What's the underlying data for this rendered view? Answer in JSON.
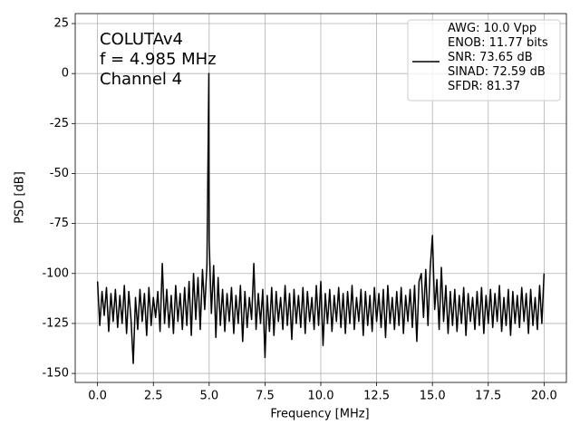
{
  "chart_data": {
    "type": "line",
    "xlabel": "Frequency [MHz]",
    "ylabel": "PSD [dB]",
    "annotations": [
      "COLUTAv4",
      "f = 4.985 MHz",
      "Channel 4"
    ],
    "xlim": [
      -1.0,
      21.0
    ],
    "ylim": [
      -154.5,
      30
    ],
    "xticks": [
      {
        "value": 0,
        "label": "0.0"
      },
      2.5,
      {
        "value": 5,
        "label": "5.0"
      },
      7.5,
      {
        "value": 10,
        "label": "10.0"
      },
      12.5,
      {
        "value": 15,
        "label": "15.0"
      },
      17.5,
      {
        "value": 20,
        "label": "20.0"
      }
    ],
    "yticks": [
      25,
      0,
      -25,
      -50,
      -75,
      -100,
      -125,
      -150
    ],
    "grid": true,
    "legend": "upper right",
    "x": [
      0.0,
      0.1,
      0.2,
      0.3,
      0.4,
      0.5,
      0.6,
      0.7,
      0.8,
      0.9,
      1.0,
      1.1,
      1.2,
      1.3,
      1.4,
      1.5,
      1.6,
      1.7,
      1.8,
      1.9,
      2.0,
      2.1,
      2.2,
      2.3,
      2.4,
      2.5,
      2.6,
      2.7,
      2.8,
      2.9,
      3.0,
      3.1,
      3.2,
      3.3,
      3.4,
      3.5,
      3.6,
      3.7,
      3.8,
      3.9,
      4.0,
      4.1,
      4.2,
      4.3,
      4.4,
      4.5,
      4.6,
      4.7,
      4.8,
      4.9,
      4.985,
      5.0,
      5.1,
      5.2,
      5.3,
      5.4,
      5.5,
      5.6,
      5.7,
      5.8,
      5.9,
      6.0,
      6.1,
      6.2,
      6.3,
      6.4,
      6.5,
      6.6,
      6.7,
      6.8,
      6.9,
      7.0,
      7.1,
      7.2,
      7.3,
      7.4,
      7.5,
      7.6,
      7.7,
      7.8,
      7.9,
      8.0,
      8.1,
      8.2,
      8.3,
      8.4,
      8.5,
      8.6,
      8.7,
      8.8,
      8.9,
      9.0,
      9.1,
      9.2,
      9.3,
      9.4,
      9.5,
      9.6,
      9.7,
      9.8,
      9.9,
      10.0,
      10.1,
      10.2,
      10.3,
      10.4,
      10.5,
      10.6,
      10.7,
      10.8,
      10.9,
      11.0,
      11.1,
      11.2,
      11.3,
      11.4,
      11.5,
      11.6,
      11.7,
      11.8,
      11.9,
      12.0,
      12.1,
      12.2,
      12.3,
      12.4,
      12.5,
      12.6,
      12.7,
      12.8,
      12.9,
      13.0,
      13.1,
      13.2,
      13.3,
      13.4,
      13.5,
      13.6,
      13.7,
      13.8,
      13.9,
      14.0,
      14.1,
      14.2,
      14.3,
      14.4,
      14.5,
      14.6,
      14.7,
      14.8,
      14.9,
      15.0,
      15.1,
      15.2,
      15.3,
      15.4,
      15.5,
      15.6,
      15.7,
      15.8,
      15.9,
      16.0,
      16.1,
      16.2,
      16.3,
      16.4,
      16.5,
      16.6,
      16.7,
      16.8,
      16.9,
      17.0,
      17.1,
      17.2,
      17.3,
      17.4,
      17.5,
      17.6,
      17.7,
      17.8,
      17.9,
      18.0,
      18.1,
      18.2,
      18.3,
      18.4,
      18.5,
      18.6,
      18.7,
      18.8,
      18.9,
      19.0,
      19.1,
      19.2,
      19.3,
      19.4,
      19.5,
      19.6,
      19.7,
      19.8,
      19.9,
      20.0
    ],
    "series": [
      {
        "name": "AWG: 10.0 Vpp\nENOB: 11.77 bits\nSNR: 73.65 dB\nSINAD: 72.59 dB\nSFDR: 81.37",
        "color": "#000000",
        "values": [
          -104,
          -126,
          -109,
          -121,
          -107,
          -129,
          -110,
          -124,
          -108,
          -127,
          -111,
          -125,
          -106,
          -130,
          -109,
          -123,
          -145,
          -112,
          -128,
          -108,
          -124,
          -110,
          -131,
          -107,
          -126,
          -112,
          -122,
          -109,
          -129,
          -95,
          -125,
          -108,
          -127,
          -111,
          -130,
          -106,
          -124,
          -110,
          -128,
          -107,
          -126,
          -104,
          -131,
          -100,
          -123,
          -102,
          -128,
          -98,
          -118,
          -96,
          0,
          -84,
          -120,
          -96,
          -132,
          -102,
          -126,
          -108,
          -129,
          -110,
          -124,
          -107,
          -130,
          -111,
          -125,
          -106,
          -134,
          -109,
          -127,
          -112,
          -123,
          -95,
          -128,
          -110,
          -125,
          -108,
          -142,
          -111,
          -129,
          -107,
          -131,
          -109,
          -124,
          -112,
          -128,
          -106,
          -126,
          -110,
          -133,
          -108,
          -125,
          -111,
          -127,
          -107,
          -130,
          -109,
          -124,
          -112,
          -128,
          -106,
          -126,
          -104,
          -136,
          -110,
          -125,
          -108,
          -129,
          -111,
          -124,
          -107,
          -127,
          -110,
          -130,
          -109,
          -125,
          -106,
          -128,
          -112,
          -124,
          -108,
          -131,
          -109,
          -126,
          -111,
          -129,
          -107,
          -124,
          -110,
          -127,
          -108,
          -132,
          -106,
          -125,
          -112,
          -128,
          -109,
          -126,
          -107,
          -130,
          -111,
          -124,
          -108,
          -127,
          -106,
          -134,
          -104,
          -100,
          -122,
          -98,
          -126,
          -97,
          -81,
          -118,
          -103,
          -128,
          -97,
          -124,
          -106,
          -130,
          -109,
          -126,
          -108,
          -129,
          -111,
          -125,
          -107,
          -131,
          -110,
          -124,
          -112,
          -128,
          -109,
          -126,
          -107,
          -130,
          -111,
          -125,
          -108,
          -127,
          -110,
          -124,
          -106,
          -129,
          -112,
          -126,
          -108,
          -131,
          -109,
          -125,
          -111,
          -127,
          -107,
          -124,
          -110,
          -130,
          -108,
          -126,
          -112,
          -128,
          -106,
          -125,
          -100
        ]
      }
    ]
  }
}
